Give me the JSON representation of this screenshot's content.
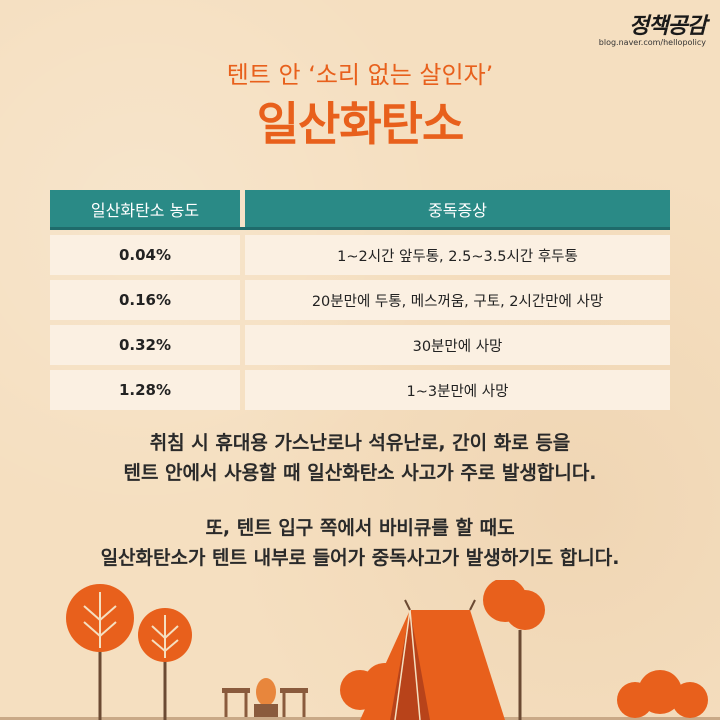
{
  "brand": {
    "name": "정책공감",
    "url": "blog.naver.com/hellopolicy"
  },
  "header": {
    "subtitle": "텐트 안 ‘소리 없는 살인자’",
    "title": "일산화탄소"
  },
  "table": {
    "columns": [
      "일산화탄소 농도",
      "중독증상"
    ],
    "rows": [
      {
        "concentration": "0.04%",
        "symptom": "1~2시간 앞두통, 2.5~3.5시간 후두통"
      },
      {
        "concentration": "0.16%",
        "symptom": "20분만에 두통, 메스꺼움, 구토, 2시간만에 사망"
      },
      {
        "concentration": "0.32%",
        "symptom": "30분만에 사망"
      },
      {
        "concentration": "1.28%",
        "symptom": "1~3분만에 사망"
      }
    ]
  },
  "body": {
    "para1_line1": "취침 시 휴대용 가스난로나 석유난로, 간이 화로 등을",
    "para1_line2": "텐트 안에서 사용할 때 일산화탄소 사고가 주로 발생합니다.",
    "para2_line1": "또, 텐트 입구 쪽에서 바비큐를 할 때도",
    "para2_line2": "일산화탄소가 텐트 내부로 들어가 중독사고가 발생하기도 합니다."
  },
  "colors": {
    "background": "#f5dfc0",
    "accent_orange": "#e8601c",
    "header_teal": "#2a8a86",
    "cell_bg": "#fbf0e2"
  }
}
